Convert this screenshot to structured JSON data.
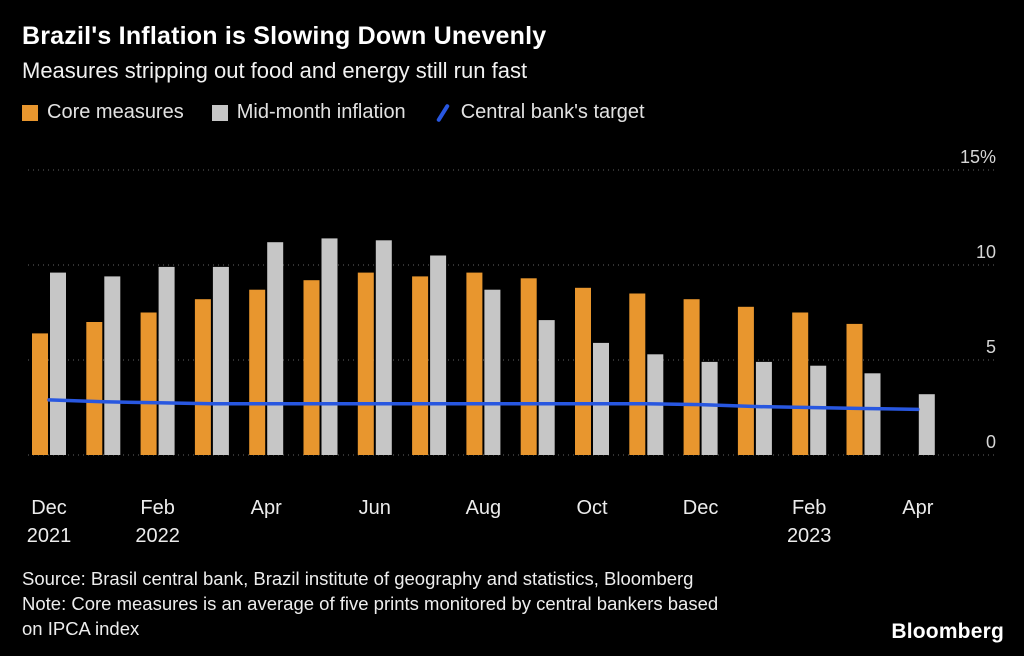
{
  "header": {
    "title": "Brazil's Inflation is Slowing Down Unevenly",
    "subtitle": "Measures stripping out food and energy still run fast"
  },
  "legend": {
    "items": [
      {
        "label": "Core measures",
        "color": "#E8962E",
        "type": "square"
      },
      {
        "label": "Mid-month inflation",
        "color": "#C6C6C6",
        "type": "square"
      },
      {
        "label": "Central bank's target",
        "color": "#2857E0",
        "type": "line"
      }
    ]
  },
  "chart_data": {
    "type": "bar",
    "title": "Brazil's Inflation is Slowing Down Unevenly",
    "xlabel": "",
    "ylabel": "",
    "ylim": [
      0,
      15
    ],
    "yticks": [
      0,
      5,
      10,
      15
    ],
    "ytick_labels": [
      "0",
      "5",
      "10",
      "15%"
    ],
    "grid": "dotted-horizontal",
    "legend_position": "top",
    "categories": [
      "Dec 2021",
      "Jan 2022",
      "Feb 2022",
      "Mar 2022",
      "Apr 2022",
      "May 2022",
      "Jun 2022",
      "Jul 2022",
      "Aug 2022",
      "Sep 2022",
      "Oct 2022",
      "Nov 2022",
      "Dec 2022",
      "Jan 2023",
      "Feb 2023",
      "Mar 2023",
      "Apr 2023"
    ],
    "series": [
      {
        "name": "Core measures",
        "color": "#E8962E",
        "values": [
          6.4,
          7.0,
          7.5,
          8.2,
          8.7,
          9.2,
          9.6,
          9.4,
          9.6,
          9.3,
          8.8,
          8.5,
          8.2,
          7.8,
          7.5,
          6.9,
          null
        ]
      },
      {
        "name": "Mid-month inflation",
        "color": "#C6C6C6",
        "values": [
          9.6,
          9.4,
          9.9,
          9.9,
          11.2,
          11.4,
          11.3,
          10.5,
          8.7,
          7.1,
          5.9,
          5.3,
          4.9,
          4.9,
          4.7,
          4.3,
          3.2
        ]
      }
    ],
    "line_series": {
      "name": "Central bank's target",
      "color": "#2857E0",
      "values": [
        2.9,
        2.8,
        2.75,
        2.7,
        2.7,
        2.7,
        2.7,
        2.7,
        2.7,
        2.7,
        2.7,
        2.7,
        2.65,
        2.55,
        2.5,
        2.45,
        2.4
      ]
    },
    "xticks": [
      {
        "index": 0,
        "label": "Dec",
        "year": "2021"
      },
      {
        "index": 2,
        "label": "Feb",
        "year": "2022"
      },
      {
        "index": 4,
        "label": "Apr"
      },
      {
        "index": 6,
        "label": "Jun"
      },
      {
        "index": 8,
        "label": "Aug"
      },
      {
        "index": 10,
        "label": "Oct"
      },
      {
        "index": 12,
        "label": "Dec"
      },
      {
        "index": 14,
        "label": "Feb",
        "year": "2023"
      },
      {
        "index": 16,
        "label": "Apr"
      }
    ]
  },
  "footer": {
    "lines": [
      "Source: Brasil central bank, Brazil institute of geography and statistics, Bloomberg",
      "Note: Core measures is an average of five prints monitored by central bankers based",
      "on IPCA index"
    ],
    "logo": "Bloomberg"
  }
}
